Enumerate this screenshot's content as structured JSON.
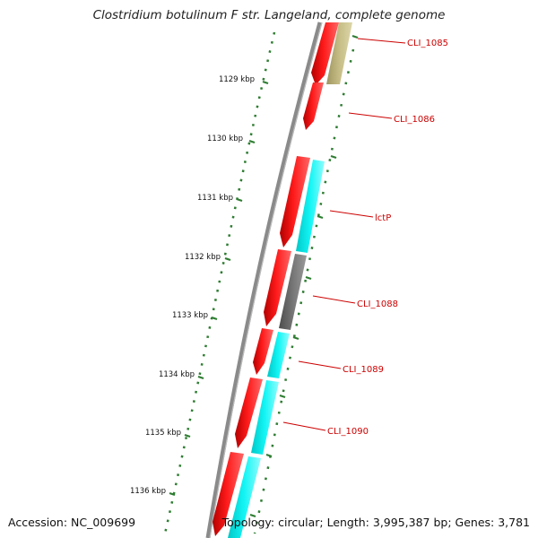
{
  "header": {
    "title": "Clostridium botulinum F str. Langeland, complete genome"
  },
  "footer": {
    "accession": "Accession: NC_009699",
    "summary": "Topology: circular; Length: 3,995,387 bp; Genes: 3,781"
  },
  "ruler": {
    "labels": [
      "1129 kbp",
      "1130 kbp",
      "1131 kbp",
      "1132 kbp",
      "1133 kbp",
      "1134 kbp",
      "1135 kbp",
      "1136 kbp"
    ]
  },
  "genes": [
    {
      "id": "cli1085",
      "label": "CLI_1085"
    },
    {
      "id": "cli1086",
      "label": "CLI_1086"
    },
    {
      "id": "lctp",
      "label": "lctP"
    },
    {
      "id": "cli1088",
      "label": "CLI_1088"
    },
    {
      "id": "cli1089",
      "label": "CLI_1089"
    },
    {
      "id": "cli1090",
      "label": "CLI_1090"
    }
  ],
  "colors": {
    "backbone": "#8a8a8a",
    "forward_gene": "#ff0000",
    "cog_cyan": "#00eeee",
    "cog_khaki": "#bdb47c",
    "cog_gray": "#6e6e6e",
    "ruler_tick": "#2e7d32",
    "gene_label": "#cc0000"
  }
}
